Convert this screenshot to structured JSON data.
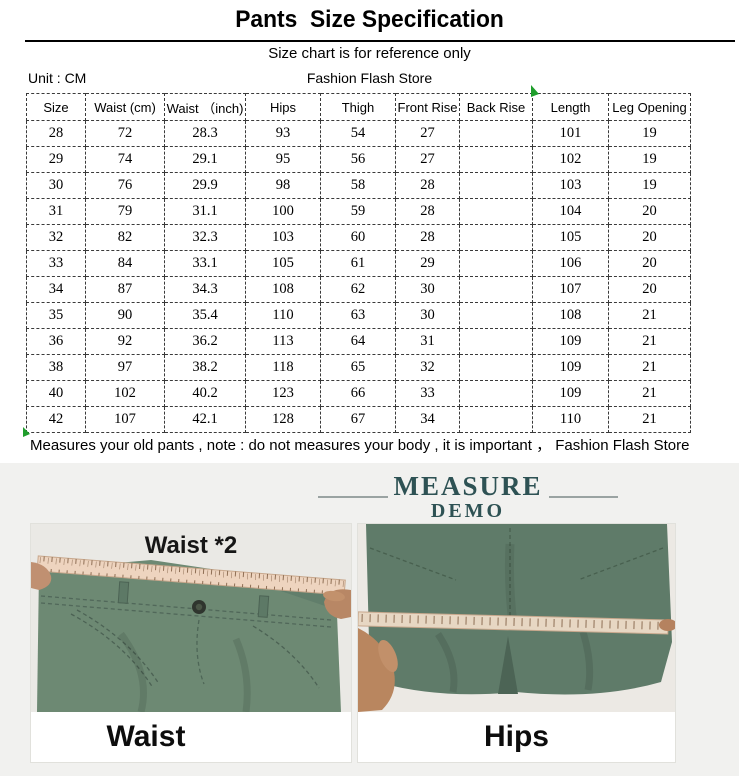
{
  "header": {
    "title": "Pants  Size Specification",
    "subtitle": "Size chart is for reference only",
    "unit_label": "Unit : CM",
    "store_name": "Fashion Flash Store"
  },
  "table": {
    "headers": [
      "Size",
      "Waist (cm)",
      "Waist （inch)",
      "Hips",
      "Thigh",
      "Front Rise",
      "Back Rise",
      "Length",
      "Leg Opening"
    ],
    "rows": [
      [
        "28",
        "72",
        "28.3",
        "93",
        "54",
        "27",
        "",
        "101",
        "19"
      ],
      [
        "29",
        "74",
        "29.1",
        "95",
        "56",
        "27",
        "",
        "102",
        "19"
      ],
      [
        "30",
        "76",
        "29.9",
        "98",
        "58",
        "28",
        "",
        "103",
        "19"
      ],
      [
        "31",
        "79",
        "31.1",
        "100",
        "59",
        "28",
        "",
        "104",
        "20"
      ],
      [
        "32",
        "82",
        "32.3",
        "103",
        "60",
        "28",
        "",
        "105",
        "20"
      ],
      [
        "33",
        "84",
        "33.1",
        "105",
        "61",
        "29",
        "",
        "106",
        "20"
      ],
      [
        "34",
        "87",
        "34.3",
        "108",
        "62",
        "30",
        "",
        "107",
        "20"
      ],
      [
        "35",
        "90",
        "35.4",
        "110",
        "63",
        "30",
        "",
        "108",
        "21"
      ],
      [
        "36",
        "92",
        "36.2",
        "113",
        "64",
        "31",
        "",
        "109",
        "21"
      ],
      [
        "38",
        "97",
        "38.2",
        "118",
        "65",
        "32",
        "",
        "109",
        "21"
      ],
      [
        "40",
        "102",
        "40.2",
        "123",
        "66",
        "33",
        "",
        "109",
        "21"
      ],
      [
        "42",
        "107",
        "42.1",
        "128",
        "67",
        "34",
        "",
        "110",
        "21"
      ]
    ]
  },
  "note": {
    "text": "Measures your old pants ,  note : do not measures your body , it is important ， Fashion Flash Store"
  },
  "demo": {
    "measure": "MEASURE",
    "demo": "DEMO",
    "waist2_label": "Waist *2",
    "waist_label": "Waist",
    "hips_label": "Hips"
  },
  "colors": {
    "accent_teal": "#2e5254",
    "pants_green": "#6d8973",
    "pants_green_dark": "#5f7b69",
    "tape_cream": "#eed4bf",
    "photo_bg": "#eae9e5",
    "section_bg": "#f1f1ef",
    "artifact_green": "#1f9e2c",
    "border_dash": "#3a3a3a"
  }
}
